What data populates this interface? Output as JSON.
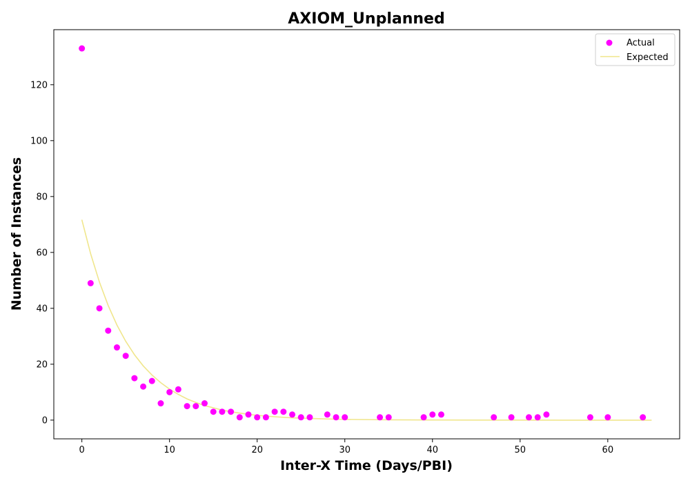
{
  "chart_data": {
    "type": "scatter",
    "title": "AXIOM_Unplanned",
    "xlabel": "Inter-X Time (Days/PBI)",
    "ylabel": "Number of Instances",
    "xlim": [
      -3.2,
      68.2
    ],
    "ylim": [
      -6.7,
      139.7
    ],
    "xticks": [
      0,
      10,
      20,
      30,
      40,
      50,
      60
    ],
    "yticks": [
      0,
      20,
      40,
      60,
      80,
      100,
      120
    ],
    "grid": false,
    "legend_position": "top-right",
    "series": [
      {
        "name": "Actual",
        "kind": "scatter",
        "color": "#ff00ff",
        "points": [
          [
            0,
            133
          ],
          [
            1,
            49
          ],
          [
            2,
            40
          ],
          [
            3,
            32
          ],
          [
            4,
            26
          ],
          [
            5,
            23
          ],
          [
            6,
            15
          ],
          [
            7,
            12
          ],
          [
            8,
            14
          ],
          [
            9,
            6
          ],
          [
            10,
            10
          ],
          [
            11,
            11
          ],
          [
            12,
            5
          ],
          [
            13,
            5
          ],
          [
            14,
            6
          ],
          [
            15,
            3
          ],
          [
            16,
            3
          ],
          [
            17,
            3
          ],
          [
            18,
            1
          ],
          [
            19,
            2
          ],
          [
            20,
            1
          ],
          [
            21,
            1
          ],
          [
            22,
            3
          ],
          [
            23,
            3
          ],
          [
            24,
            2
          ],
          [
            25,
            1
          ],
          [
            26,
            1
          ],
          [
            28,
            2
          ],
          [
            29,
            1
          ],
          [
            30,
            1
          ],
          [
            34,
            1
          ],
          [
            35,
            1
          ],
          [
            39,
            1
          ],
          [
            40,
            2
          ],
          [
            41,
            2
          ],
          [
            47,
            1
          ],
          [
            49,
            1
          ],
          [
            51,
            1
          ],
          [
            52,
            1
          ],
          [
            53,
            2
          ],
          [
            58,
            1
          ],
          [
            60,
            1
          ],
          [
            64,
            1
          ]
        ]
      },
      {
        "name": "Expected",
        "kind": "line",
        "color": "#f0e68c",
        "points": [
          [
            0,
            71.7
          ],
          [
            1,
            59.5
          ],
          [
            2,
            49.4
          ],
          [
            3,
            41.0
          ],
          [
            4,
            34.0
          ],
          [
            5,
            28.2
          ],
          [
            6,
            23.4
          ],
          [
            7,
            19.4
          ],
          [
            8,
            16.1
          ],
          [
            9,
            13.4
          ],
          [
            10,
            11.1
          ],
          [
            11,
            9.2
          ],
          [
            12,
            7.6
          ],
          [
            13,
            6.3
          ],
          [
            14,
            5.2
          ],
          [
            15,
            4.4
          ],
          [
            16,
            3.6
          ],
          [
            17,
            3.0
          ],
          [
            18,
            2.5
          ],
          [
            19,
            2.1
          ],
          [
            20,
            1.7
          ],
          [
            22,
            1.2
          ],
          [
            24,
            0.8
          ],
          [
            26,
            0.6
          ],
          [
            28,
            0.4
          ],
          [
            30,
            0.27
          ],
          [
            35,
            0.11
          ],
          [
            40,
            0.04
          ],
          [
            45,
            0.02
          ],
          [
            50,
            0.01
          ],
          [
            55,
            0.0
          ],
          [
            60,
            0.0
          ],
          [
            65,
            0.0
          ]
        ]
      }
    ]
  }
}
